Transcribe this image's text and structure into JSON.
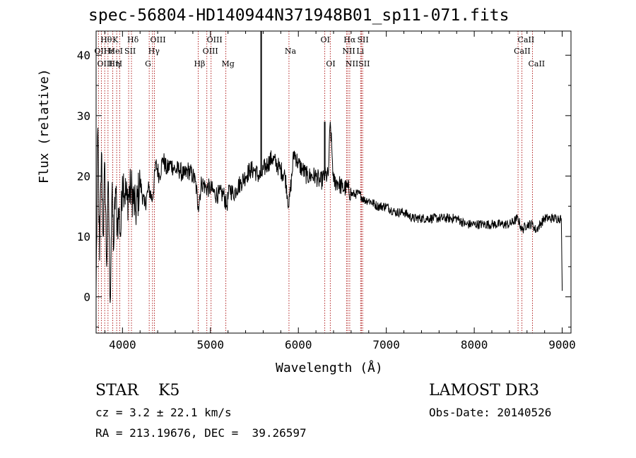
{
  "chart_data": {
    "type": "line",
    "title": "spec-56804-HD140944N371948B01_sp11-071.fits",
    "xlabel": "Wavelength (Å)",
    "ylabel": "Flux (relative)",
    "xlim": [
      3700,
      9100
    ],
    "ylim": [
      -6,
      44
    ],
    "xticks": [
      4000,
      5000,
      6000,
      7000,
      8000,
      9000
    ],
    "yticks": [
      0,
      10,
      20,
      30,
      40
    ],
    "grid": false,
    "series": [
      {
        "name": "flux",
        "x": [
          3700,
          3720,
          3740,
          3760,
          3780,
          3800,
          3820,
          3840,
          3860,
          3880,
          3900,
          3920,
          3940,
          3960,
          3980,
          4000,
          4050,
          4100,
          4150,
          4200,
          4250,
          4300,
          4340,
          4380,
          4420,
          4460,
          4500,
          4550,
          4600,
          4650,
          4700,
          4750,
          4800,
          4830,
          4861,
          4900,
          4950,
          5000,
          5050,
          5100,
          5150,
          5184,
          5220,
          5260,
          5300,
          5350,
          5400,
          5450,
          5500,
          5550,
          5580,
          5600,
          5650,
          5700,
          5750,
          5800,
          5850,
          5893,
          5950,
          6000,
          6050,
          6100,
          6150,
          6200,
          6250,
          6300,
          6340,
          6363,
          6400,
          6450,
          6500,
          6563,
          6600,
          6650,
          6700,
          6750,
          6800,
          6900,
          7000,
          7100,
          7200,
          7300,
          7400,
          7500,
          7600,
          7700,
          7800,
          7900,
          8000,
          8100,
          8200,
          8300,
          8400,
          8498,
          8542,
          8600,
          8662,
          8700,
          8800,
          8900,
          8950,
          8990,
          9000
        ],
        "y": [
          1,
          28,
          6,
          24,
          10,
          22,
          5,
          19,
          -1,
          17,
          8,
          18,
          12,
          14,
          10,
          20,
          16,
          18,
          14,
          19,
          15,
          18,
          16,
          22,
          20,
          23,
          21,
          22,
          21,
          21,
          20,
          21,
          20,
          19,
          15,
          19,
          18,
          18,
          17,
          17,
          17,
          15,
          18,
          17,
          18,
          19,
          20,
          21,
          21,
          20,
          20,
          21,
          22,
          23,
          22,
          21,
          20,
          15,
          24,
          22,
          21,
          20,
          20,
          20,
          19,
          20,
          20,
          29,
          19,
          19,
          18,
          18,
          17,
          17,
          17,
          16,
          16,
          15,
          15,
          14,
          14,
          13,
          13,
          13,
          13,
          13,
          13,
          12,
          12,
          12,
          12,
          12,
          12,
          13,
          11,
          12,
          12,
          11,
          13,
          13,
          13,
          13,
          1
        ]
      }
    ],
    "spikes": [
      {
        "x": 5577,
        "y": 44
      },
      {
        "x": 6300,
        "y": 29
      }
    ],
    "annotations": [
      "STAR    K5",
      "cz = 3.2 ± 22.1 km/s",
      "RA = 213.19676, DEC =  39.26597",
      "LAMOST DR3",
      "Obs-Date: 20140526"
    ],
    "lines": [
      {
        "label": "Hθ",
        "x": 3798,
        "row": 1
      },
      {
        "label": "OII",
        "x": 3727,
        "row": 2
      },
      {
        "label": "OIII",
        "x": 3760,
        "row": 3
      },
      {
        "label": "Hε",
        "x": 3835,
        "row": 2
      },
      {
        "label": "Hη",
        "x": 3889,
        "row": 3
      },
      {
        "label": "K",
        "x": 3934,
        "row": 1
      },
      {
        "label": "HeI",
        "x": 3889,
        "row": 2
      },
      {
        "label": "H",
        "x": 3969,
        "row": 3
      },
      {
        "label": "SII",
        "x": 4070,
        "row": 2
      },
      {
        "label": "Hδ",
        "x": 4102,
        "row": 1
      },
      {
        "label": "OIII",
        "x": 4363,
        "row": 1
      },
      {
        "label": "Hγ",
        "x": 4341,
        "row": 2
      },
      {
        "label": "G",
        "x": 4304,
        "row": 3
      },
      {
        "label": "Hβ",
        "x": 4861,
        "row": 3
      },
      {
        "label": "OIII",
        "x": 5007,
        "row": 1
      },
      {
        "label": "OIII",
        "x": 4959,
        "row": 2
      },
      {
        "label": "Mg",
        "x": 5175,
        "row": 3
      },
      {
        "label": "Na",
        "x": 5893,
        "row": 2
      },
      {
        "label": "OI",
        "x": 6300,
        "row": 1
      },
      {
        "label": "OI",
        "x": 6363,
        "row": 3
      },
      {
        "label": "Hα",
        "x": 6563,
        "row": 1
      },
      {
        "label": "SII",
        "x": 6717,
        "row": 1
      },
      {
        "label": "NII",
        "x": 6548,
        "row": 2
      },
      {
        "label": "Li",
        "x": 6708,
        "row": 2
      },
      {
        "label": "NII",
        "x": 6584,
        "row": 3
      },
      {
        "label": "SII",
        "x": 6731,
        "row": 3
      },
      {
        "label": "CaII",
        "x": 8542,
        "row": 1
      },
      {
        "label": "CaII",
        "x": 8498,
        "row": 2
      },
      {
        "label": "CaII",
        "x": 8662,
        "row": 3
      }
    ]
  }
}
